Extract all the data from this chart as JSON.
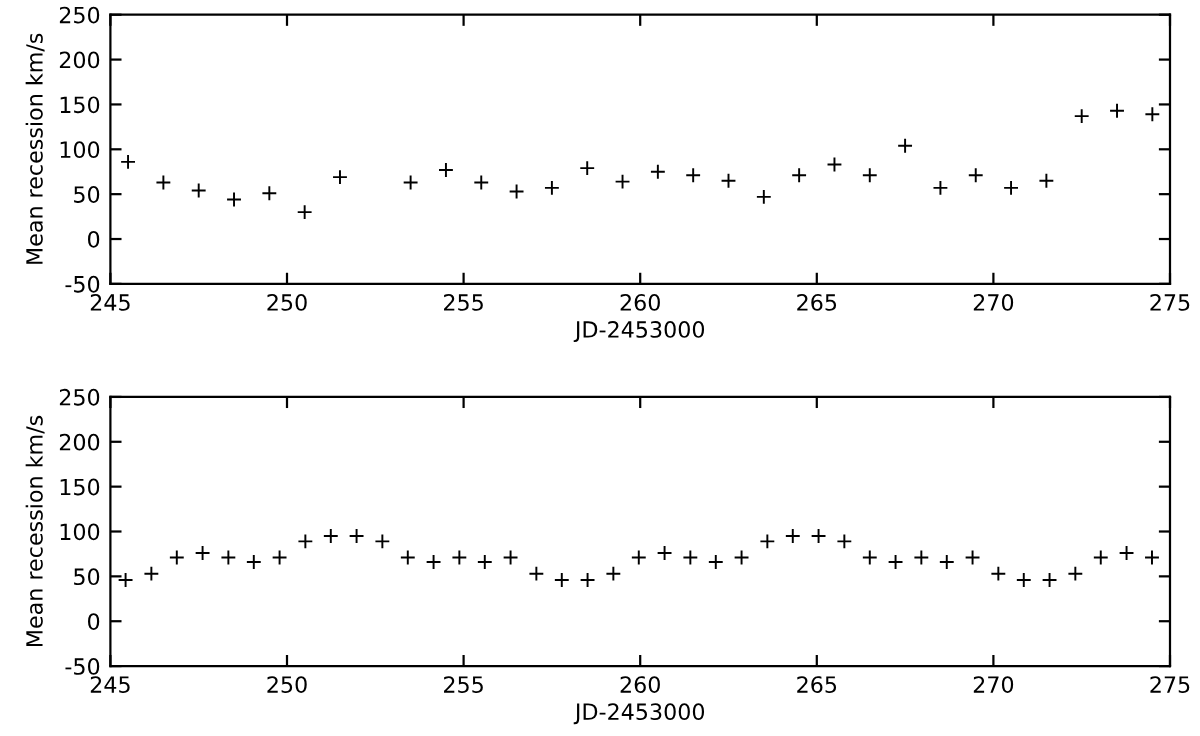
{
  "chart_data": [
    {
      "type": "scatter",
      "xlabel": "JD-2453000",
      "ylabel": "Mean recession km/s",
      "marker": "cross",
      "grid": false,
      "legend": false,
      "xlim": [
        245,
        275
      ],
      "xticks": [
        245,
        250,
        255,
        260,
        265,
        270,
        275
      ],
      "ylim": [
        -50,
        250
      ],
      "yticks": [
        -50,
        0,
        50,
        100,
        150,
        200,
        250
      ],
      "series": [
        {
          "color": "#000000",
          "x": [
            245.5,
            246.5,
            247.5,
            248.5,
            249.5,
            250.5,
            251.5,
            253.5,
            254.5,
            255.5,
            256.5,
            257.5,
            258.5,
            259.5,
            260.5,
            261.5,
            262.5,
            263.5,
            264.5,
            265.5,
            266.5,
            267.5,
            268.5,
            269.5,
            270.5,
            271.5,
            272.5,
            273.5,
            274.5
          ],
          "values": [
            86,
            63,
            54,
            44,
            51,
            30,
            69,
            63,
            77,
            63,
            53,
            57,
            79,
            64,
            75,
            71,
            65,
            47,
            71,
            83,
            71,
            104,
            57,
            71,
            57,
            65,
            137,
            143,
            139
          ]
        }
      ]
    },
    {
      "type": "scatter",
      "xlabel": "JD-2453000",
      "ylabel": "Mean recession km/s",
      "marker": "cross",
      "grid": false,
      "legend": false,
      "xlim": [
        245,
        275
      ],
      "xticks": [
        245,
        250,
        255,
        260,
        265,
        270,
        275
      ],
      "ylim": [
        -50,
        250
      ],
      "yticks": [
        -50,
        0,
        50,
        100,
        150,
        200,
        250
      ],
      "series": [
        {
          "color": "#000000",
          "x": [
            245.43,
            246.16,
            246.88,
            247.61,
            248.34,
            249.06,
            249.79,
            250.52,
            251.24,
            251.97,
            252.7,
            253.42,
            254.15,
            254.88,
            255.6,
            256.33,
            257.06,
            257.78,
            258.51,
            259.24,
            259.96,
            260.69,
            261.42,
            262.14,
            262.87,
            263.6,
            264.32,
            265.05,
            265.78,
            266.5,
            267.23,
            267.96,
            268.68,
            269.41,
            270.14,
            270.86,
            271.59,
            272.32,
            273.04,
            273.77,
            274.49
          ],
          "values": [
            46,
            53,
            71,
            76,
            71,
            66,
            71,
            89,
            95,
            95,
            89,
            71,
            66,
            71,
            66,
            71,
            53,
            46,
            46,
            53,
            71,
            76,
            71,
            66,
            71,
            89,
            95,
            95,
            89,
            71,
            66,
            71,
            66,
            71,
            53,
            46,
            46,
            53,
            71,
            76,
            71
          ]
        }
      ]
    }
  ]
}
